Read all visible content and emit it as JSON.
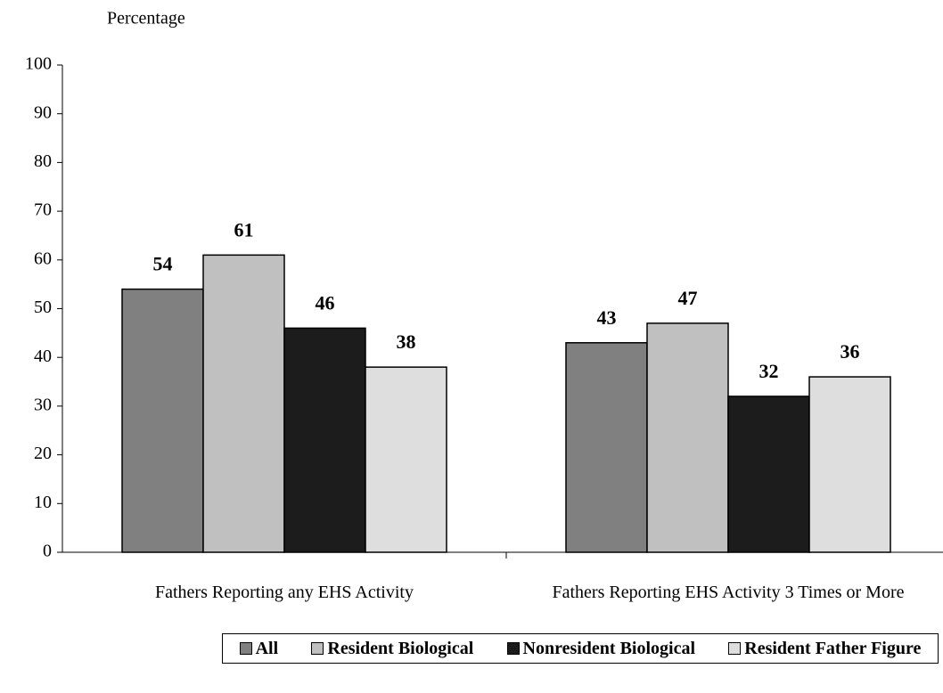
{
  "chart_data": {
    "type": "bar",
    "y_axis_label": "Percentage",
    "categories": [
      "Fathers Reporting any EHS Activity",
      "Fathers Reporting EHS Activity 3 Times or More"
    ],
    "series": [
      {
        "name": "All",
        "color": "#808080",
        "values": [
          54,
          43
        ]
      },
      {
        "name": "Resident Biological",
        "color": "#c0c0c0",
        "values": [
          61,
          47
        ]
      },
      {
        "name": "Nonresident Biological",
        "color": "#1c1c1c",
        "values": [
          46,
          32
        ]
      },
      {
        "name": "Resident Father Figure",
        "color": "#dedede",
        "values": [
          38,
          36
        ]
      }
    ],
    "ylim": [
      0,
      100
    ],
    "yticks": [
      0,
      10,
      20,
      30,
      40,
      50,
      60,
      70,
      80,
      90,
      100
    ],
    "grid": false,
    "legend": "bottom"
  }
}
